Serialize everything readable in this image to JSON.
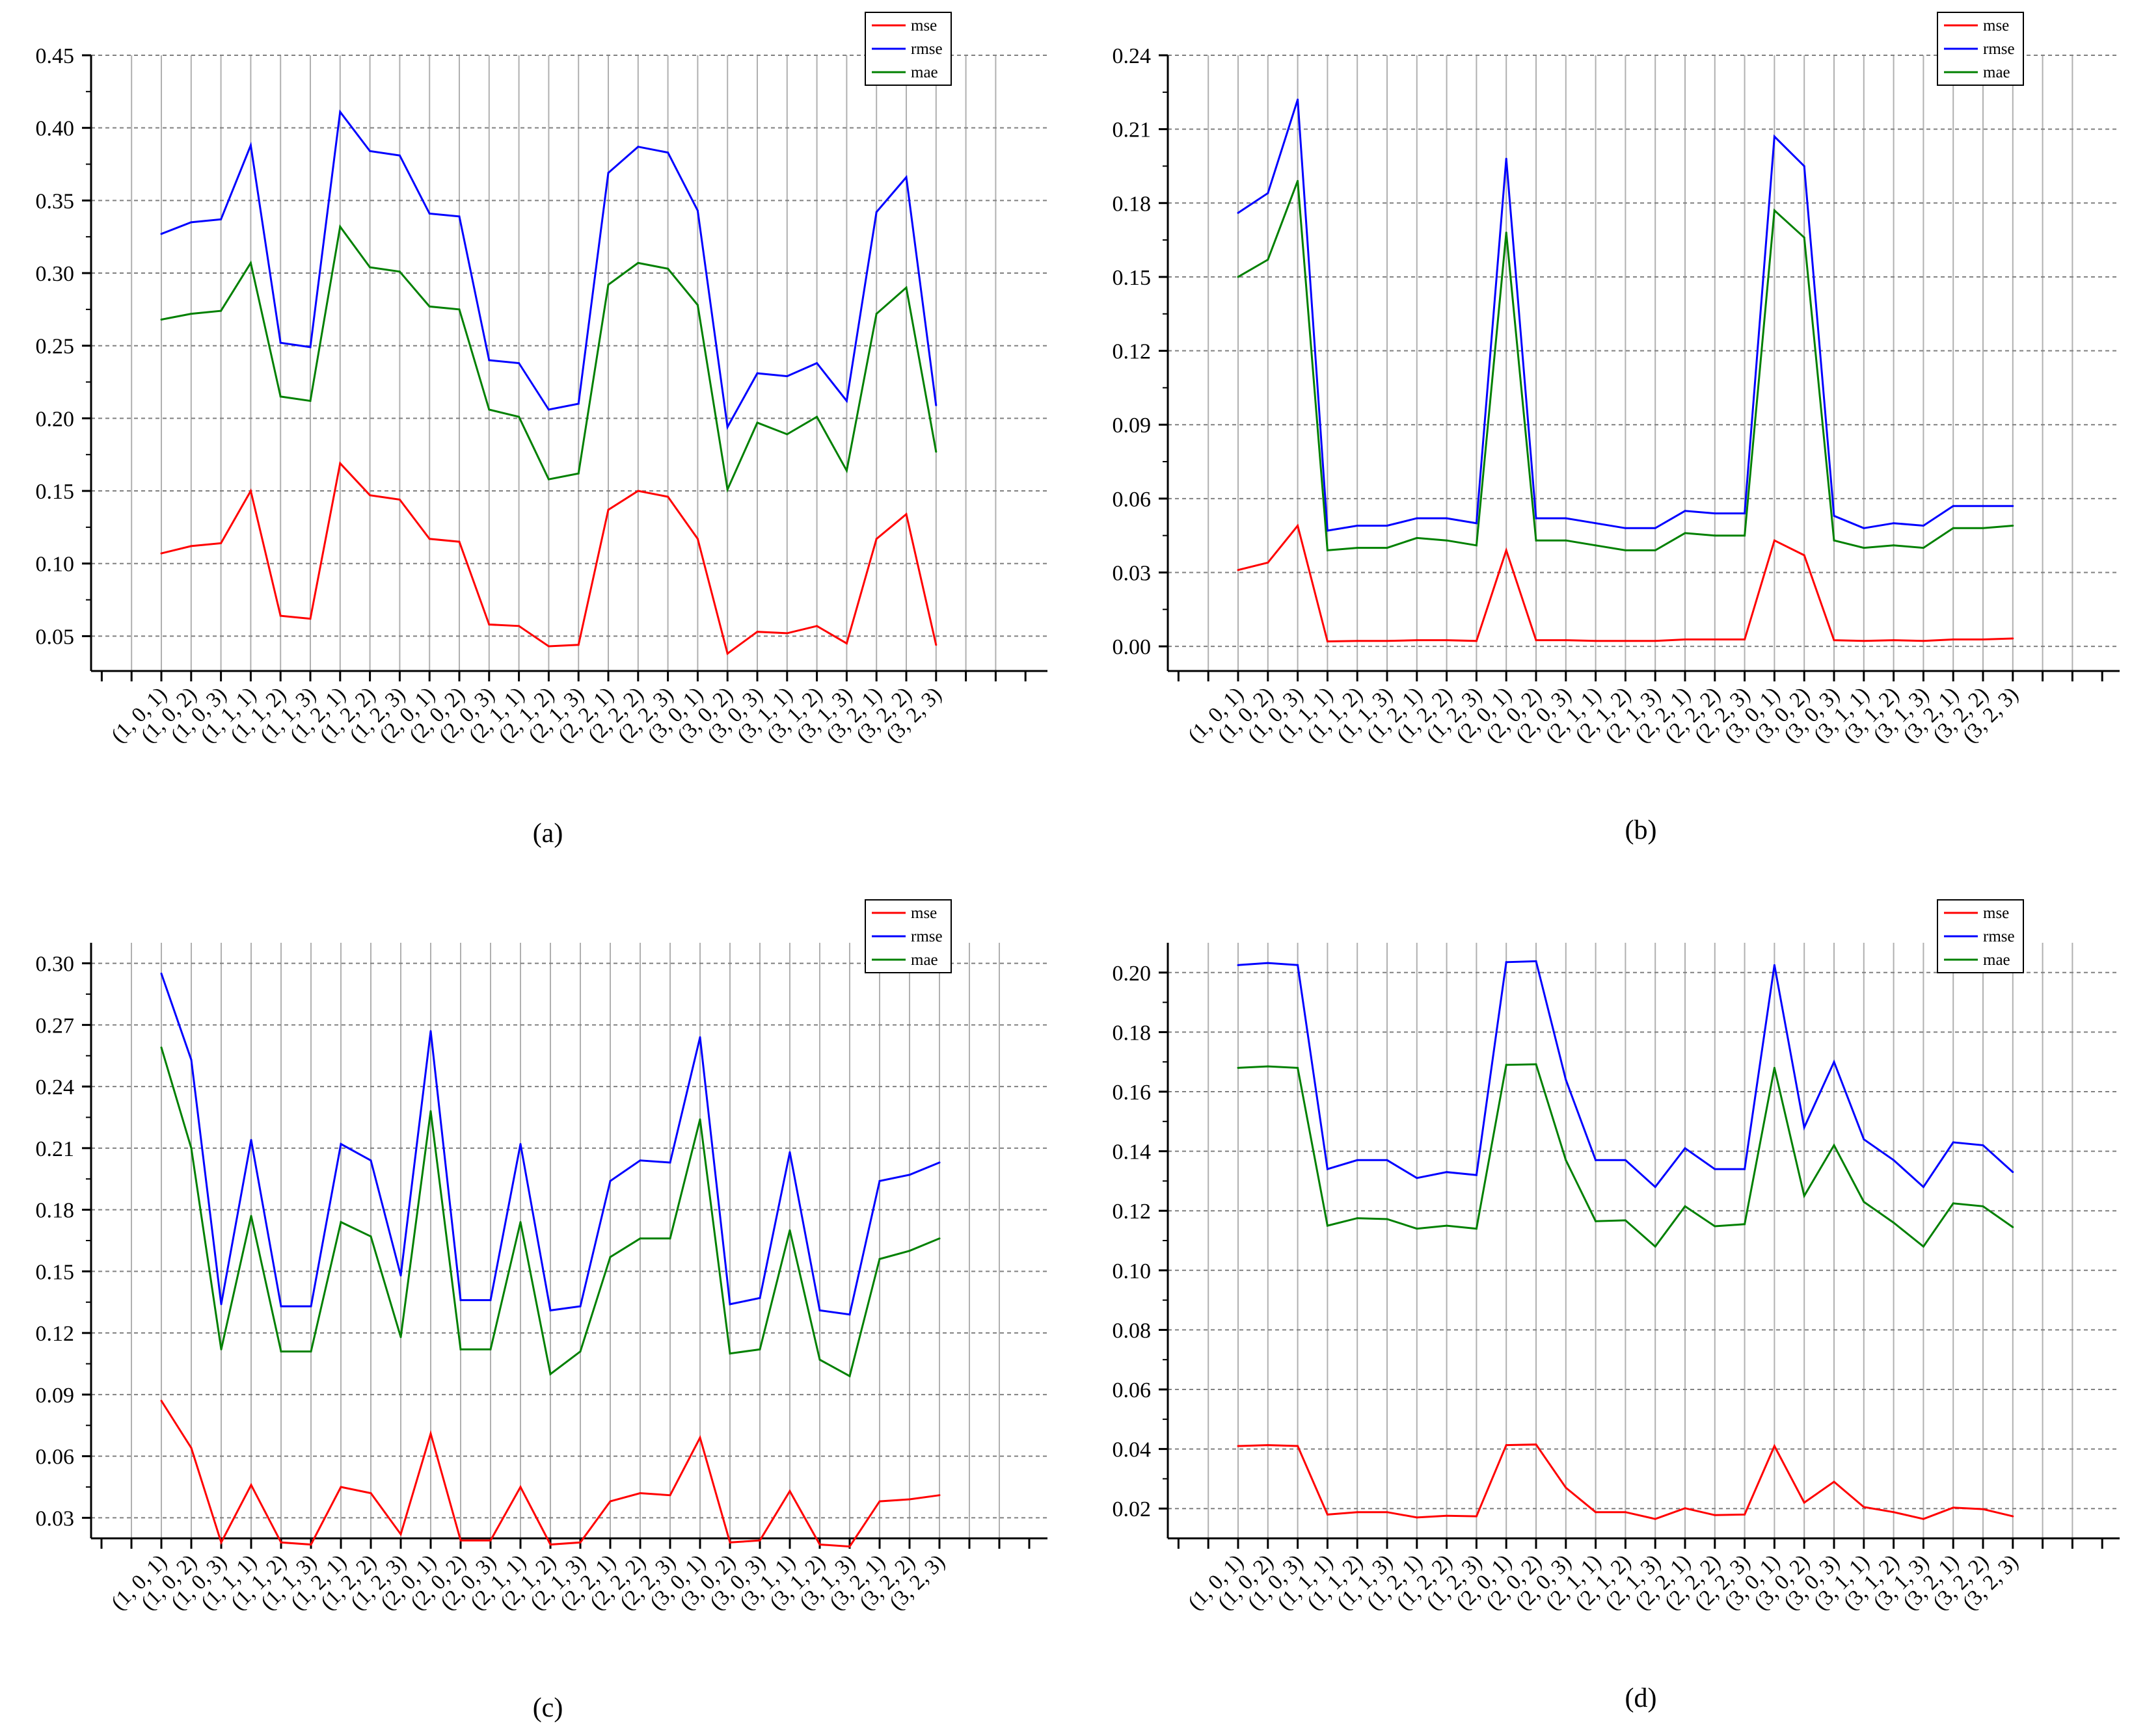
{
  "colors": {
    "mse": "#ff0000",
    "rmse": "#0000ff",
    "mae": "#008000",
    "axis": "#000000",
    "grid": "#808080",
    "vgrid": "#b0b0b0"
  },
  "chart_data": [
    {
      "type": "line",
      "caption": "(a)",
      "categories": [
        "(1, 0, 1)",
        "(1, 0, 2)",
        "(1, 0, 3)",
        "(1, 1, 1)",
        "(1, 1, 2)",
        "(1, 1, 3)",
        "(1, 2, 1)",
        "(1, 2, 2)",
        "(1, 2, 3)",
        "(2, 0, 1)",
        "(2, 0, 2)",
        "(2, 0, 3)",
        "(2, 1, 1)",
        "(2, 1, 2)",
        "(2, 1, 3)",
        "(2, 2, 1)",
        "(2, 2, 2)",
        "(2, 2, 3)",
        "(3, 0, 1)",
        "(3, 0, 2)",
        "(3, 0, 3)",
        "(3, 1, 1)",
        "(3, 1, 2)",
        "(3, 1, 3)",
        "(3, 2, 1)",
        "(3, 2, 2)",
        "(3, 2, 3)"
      ],
      "yticks": [
        "0.05",
        "0.10",
        "0.15",
        "0.20",
        "0.25",
        "0.30",
        "0.35",
        "0.40",
        "0.45"
      ],
      "ylim": [
        0.026,
        0.45
      ],
      "legend_position": "top-right",
      "series": [
        {
          "name": "mse",
          "values": [
            0.107,
            0.112,
            0.114,
            0.15,
            0.064,
            0.062,
            0.169,
            0.147,
            0.144,
            0.117,
            0.115,
            0.058,
            0.057,
            0.043,
            0.044,
            0.137,
            0.15,
            0.146,
            0.117,
            0.038,
            0.053,
            0.052,
            0.057,
            0.045,
            0.117,
            0.134,
            0.044
          ]
        },
        {
          "name": "rmse",
          "values": [
            0.327,
            0.335,
            0.337,
            0.388,
            0.252,
            0.249,
            0.411,
            0.384,
            0.381,
            0.341,
            0.339,
            0.24,
            0.238,
            0.206,
            0.21,
            0.369,
            0.387,
            0.383,
            0.343,
            0.194,
            0.231,
            0.229,
            0.238,
            0.212,
            0.342,
            0.366,
            0.209
          ]
        },
        {
          "name": "mae",
          "values": [
            0.268,
            0.272,
            0.274,
            0.307,
            0.215,
            0.212,
            0.332,
            0.304,
            0.301,
            0.277,
            0.275,
            0.206,
            0.201,
            0.158,
            0.162,
            0.292,
            0.307,
            0.303,
            0.278,
            0.151,
            0.197,
            0.189,
            0.201,
            0.164,
            0.272,
            0.29,
            0.177
          ]
        }
      ]
    },
    {
      "type": "line",
      "caption": "(b)",
      "categories": [
        "(1, 0, 1)",
        "(1, 0, 2)",
        "(1, 0, 3)",
        "(1, 1, 1)",
        "(1, 1, 2)",
        "(1, 1, 3)",
        "(1, 2, 1)",
        "(1, 2, 2)",
        "(1, 2, 3)",
        "(2, 0, 1)",
        "(2, 0, 2)",
        "(2, 0, 3)",
        "(2, 1, 1)",
        "(2, 1, 2)",
        "(2, 1, 3)",
        "(2, 2, 1)",
        "(2, 2, 2)",
        "(2, 2, 3)",
        "(3, 0, 1)",
        "(3, 0, 2)",
        "(3, 0, 3)",
        "(3, 1, 1)",
        "(3, 1, 2)",
        "(3, 1, 3)",
        "(3, 2, 1)",
        "(3, 2, 2)",
        "(3, 2, 3)"
      ],
      "yticks": [
        "0.00",
        "0.03",
        "0.06",
        "0.09",
        "0.12",
        "0.15",
        "0.18",
        "0.21",
        "0.24"
      ],
      "ylim": [
        -0.01,
        0.24
      ],
      "legend_position": "top-right",
      "series": [
        {
          "name": "mse",
          "values": [
            0.031,
            0.034,
            0.049,
            0.002,
            0.0022,
            0.0022,
            0.0025,
            0.0025,
            0.0022,
            0.039,
            0.0025,
            0.0025,
            0.0022,
            0.0022,
            0.0022,
            0.0028,
            0.0028,
            0.0028,
            0.043,
            0.037,
            0.0025,
            0.0022,
            0.0025,
            0.0022,
            0.0028,
            0.0028,
            0.0032
          ]
        },
        {
          "name": "rmse",
          "values": [
            0.176,
            0.184,
            0.222,
            0.047,
            0.049,
            0.049,
            0.052,
            0.052,
            0.05,
            0.198,
            0.052,
            0.052,
            0.05,
            0.048,
            0.048,
            0.055,
            0.054,
            0.054,
            0.207,
            0.195,
            0.053,
            0.048,
            0.05,
            0.049,
            0.057,
            0.057,
            0.057
          ]
        },
        {
          "name": "mae",
          "values": [
            0.15,
            0.157,
            0.189,
            0.039,
            0.04,
            0.04,
            0.044,
            0.043,
            0.041,
            0.168,
            0.043,
            0.043,
            0.041,
            0.039,
            0.039,
            0.046,
            0.045,
            0.045,
            0.177,
            0.166,
            0.043,
            0.04,
            0.041,
            0.04,
            0.048,
            0.048,
            0.049
          ]
        }
      ]
    },
    {
      "type": "line",
      "caption": "(c)",
      "categories": [
        "(1, 0, 1)",
        "(1, 0, 2)",
        "(1, 0, 3)",
        "(1, 1, 1)",
        "(1, 1, 2)",
        "(1, 1, 3)",
        "(1, 2, 1)",
        "(1, 2, 2)",
        "(1, 2, 3)",
        "(2, 0, 1)",
        "(2, 0, 2)",
        "(2, 0, 3)",
        "(2, 1, 1)",
        "(2, 1, 2)",
        "(2, 1, 3)",
        "(2, 2, 1)",
        "(2, 2, 2)",
        "(2, 2, 3)",
        "(3, 0, 1)",
        "(3, 0, 2)",
        "(3, 0, 3)",
        "(3, 1, 1)",
        "(3, 1, 2)",
        "(3, 1, 3)",
        "(3, 2, 1)",
        "(3, 2, 2)",
        "(3, 2, 3)"
      ],
      "yticks": [
        "0.03",
        "0.06",
        "0.09",
        "0.12",
        "0.15",
        "0.18",
        "0.21",
        "0.24",
        "0.27",
        "0.30"
      ],
      "ylim": [
        0.02,
        0.31
      ],
      "legend_position": "top-right",
      "series": [
        {
          "name": "mse",
          "values": [
            0.087,
            0.064,
            0.018,
            0.046,
            0.018,
            0.017,
            0.045,
            0.042,
            0.022,
            0.071,
            0.019,
            0.019,
            0.045,
            0.017,
            0.018,
            0.038,
            0.042,
            0.041,
            0.069,
            0.018,
            0.019,
            0.043,
            0.017,
            0.016,
            0.038,
            0.039,
            0.041
          ]
        },
        {
          "name": "rmse",
          "values": [
            0.295,
            0.253,
            0.134,
            0.214,
            0.133,
            0.133,
            0.212,
            0.204,
            0.148,
            0.267,
            0.136,
            0.136,
            0.212,
            0.131,
            0.133,
            0.194,
            0.204,
            0.203,
            0.264,
            0.134,
            0.137,
            0.208,
            0.131,
            0.129,
            0.194,
            0.197,
            0.203
          ]
        },
        {
          "name": "mae",
          "values": [
            0.259,
            0.21,
            0.112,
            0.177,
            0.111,
            0.111,
            0.174,
            0.167,
            0.118,
            0.228,
            0.112,
            0.112,
            0.174,
            0.1,
            0.111,
            0.157,
            0.166,
            0.166,
            0.224,
            0.11,
            0.112,
            0.17,
            0.107,
            0.099,
            0.156,
            0.16,
            0.166
          ]
        }
      ]
    },
    {
      "type": "line",
      "caption": "(d)",
      "categories": [
        "(1, 0, 1)",
        "(1, 0, 2)",
        "(1, 0, 3)",
        "(1, 1, 1)",
        "(1, 1, 2)",
        "(1, 1, 3)",
        "(1, 2, 1)",
        "(1, 2, 2)",
        "(1, 2, 3)",
        "(2, 0, 1)",
        "(2, 0, 2)",
        "(2, 0, 3)",
        "(2, 1, 1)",
        "(2, 1, 2)",
        "(2, 1, 3)",
        "(2, 2, 1)",
        "(2, 2, 2)",
        "(2, 2, 3)",
        "(3, 0, 1)",
        "(3, 0, 2)",
        "(3, 0, 3)",
        "(3, 1, 1)",
        "(3, 1, 2)",
        "(3, 1, 3)",
        "(3, 2, 1)",
        "(3, 2, 2)",
        "(3, 2, 3)"
      ],
      "yticks": [
        "0.02",
        "0.04",
        "0.06",
        "0.08",
        "0.10",
        "0.12",
        "0.14",
        "0.16",
        "0.18",
        "0.20"
      ],
      "ylim": [
        0.01,
        0.21
      ],
      "legend_position": "top-right",
      "series": [
        {
          "name": "mse",
          "values": [
            0.041,
            0.0413,
            0.041,
            0.018,
            0.0188,
            0.0188,
            0.017,
            0.0176,
            0.0174,
            0.0413,
            0.0415,
            0.027,
            0.0188,
            0.0188,
            0.0165,
            0.0201,
            0.0178,
            0.018,
            0.041,
            0.022,
            0.029,
            0.0205,
            0.0188,
            0.0165,
            0.0203,
            0.0198,
            0.0174
          ]
        },
        {
          "name": "rmse",
          "values": [
            0.2025,
            0.2032,
            0.2025,
            0.134,
            0.137,
            0.137,
            0.131,
            0.133,
            0.132,
            0.2035,
            0.2038,
            0.164,
            0.137,
            0.137,
            0.128,
            0.141,
            0.134,
            0.134,
            0.2025,
            0.148,
            0.17,
            0.144,
            0.137,
            0.128,
            0.143,
            0.142,
            0.133
          ]
        },
        {
          "name": "mae",
          "values": [
            0.168,
            0.1685,
            0.168,
            0.115,
            0.1175,
            0.1172,
            0.114,
            0.115,
            0.114,
            0.169,
            0.1692,
            0.137,
            0.1165,
            0.1168,
            0.108,
            0.1215,
            0.1148,
            0.1155,
            0.168,
            0.125,
            0.142,
            0.123,
            0.116,
            0.108,
            0.1225,
            0.1215,
            0.1145
          ]
        }
      ]
    }
  ]
}
